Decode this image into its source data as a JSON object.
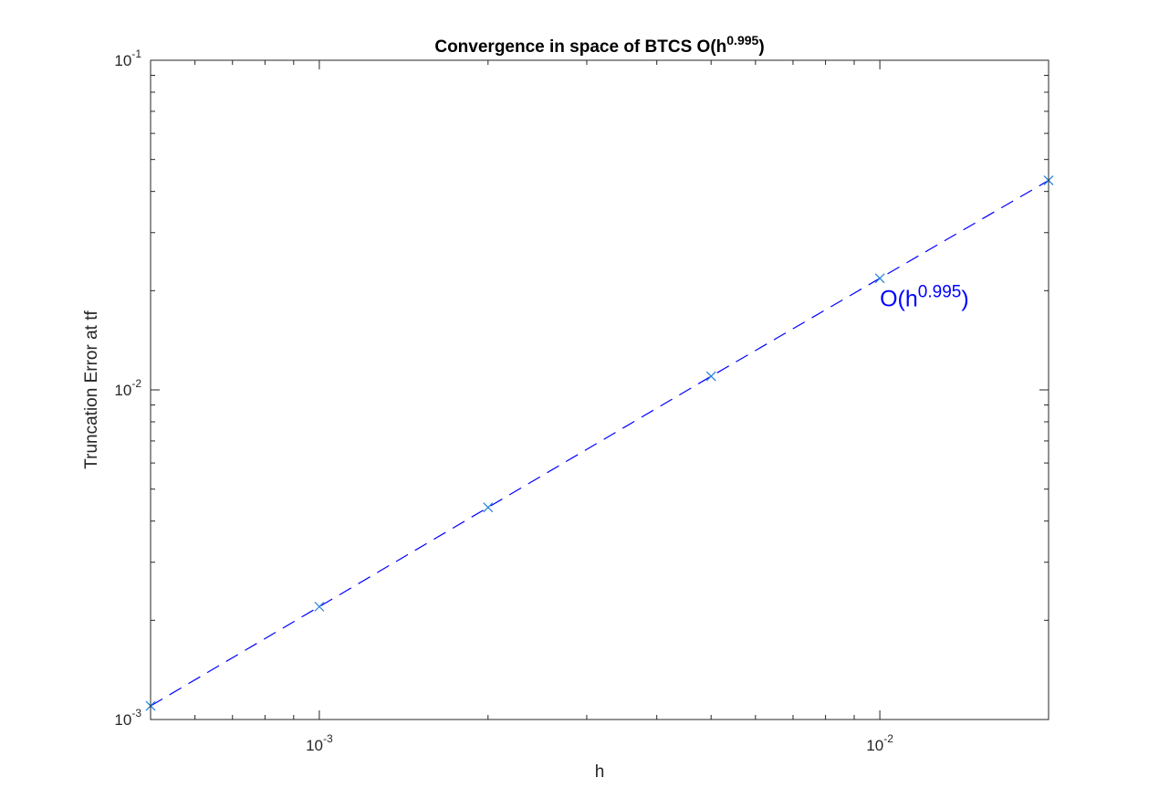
{
  "chart_data": {
    "type": "line",
    "title": {
      "base": "Convergence in space of BTCS O(h",
      "superscript": "0.995",
      "tail": ")"
    },
    "xlabel": "h",
    "ylabel": "Truncation Error at tf",
    "xscale": "log",
    "yscale": "log",
    "xlim": [
      0.0005,
      0.02
    ],
    "ylim": [
      0.001,
      0.1
    ],
    "grid": false,
    "x_ticks": [
      {
        "value": 0.001,
        "base": "10",
        "exponent": "-3"
      },
      {
        "value": 0.01,
        "base": "10",
        "exponent": "-2"
      }
    ],
    "y_ticks": [
      {
        "value": 0.001,
        "base": "10",
        "exponent": "-3"
      },
      {
        "value": 0.01,
        "base": "10",
        "exponent": "-2"
      },
      {
        "value": 0.1,
        "base": "10",
        "exponent": "-1"
      }
    ],
    "series": [
      {
        "line_style": "dashed",
        "marker": "x",
        "line_color": "#0000ff",
        "marker_color": "#1f7fd9",
        "x": [
          0.0005,
          0.001,
          0.002,
          0.005,
          0.01,
          0.02
        ],
        "y": [
          0.0011,
          0.0022,
          0.0044,
          0.011,
          0.0218,
          0.0432
        ]
      }
    ],
    "annotations": [
      {
        "base": "O(h",
        "superscript": "0.995",
        "tail": ")",
        "x": 0.01,
        "y": 0.0196,
        "color": "#0000ff"
      }
    ]
  }
}
